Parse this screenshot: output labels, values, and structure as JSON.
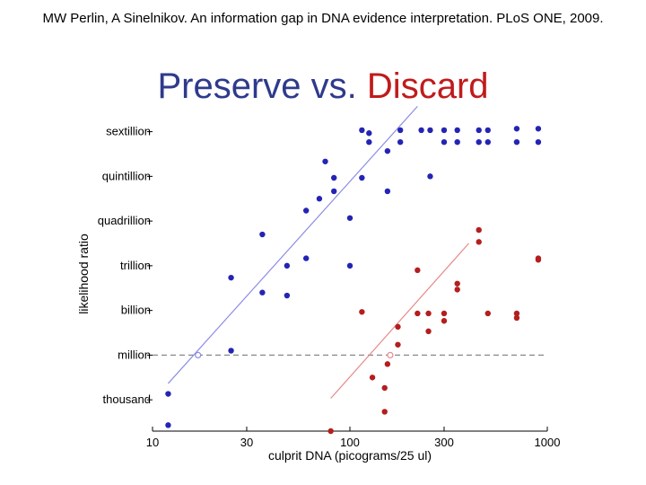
{
  "slide": {
    "citation": "MW Perlin, A Sinelnikov. An information gap in DNA evidence interpretation. PLoS ONE, 2009.",
    "title_preserve": "Preserve",
    "title_vs": "vs.",
    "title_discard": "Discard"
  },
  "colors": {
    "preserve": "#2424b4",
    "discard": "#b41e1e",
    "preserve_line": "#8c8ce6",
    "discard_line": "#e68c8c",
    "reference_line": "#888888"
  },
  "chart_data": {
    "type": "scatter",
    "xlabel": "culprit DNA (picograms/25 ul)",
    "ylabel": "likelihood ratio",
    "xscale": "log",
    "xlim": [
      10,
      1000
    ],
    "ylim": [
      0.9,
      22
    ],
    "x_ticks": [
      {
        "value": 10,
        "label": "10"
      },
      {
        "value": 30,
        "label": "30"
      },
      {
        "value": 100,
        "label": "100"
      },
      {
        "value": 300,
        "label": "300"
      },
      {
        "value": 1000,
        "label": "1000"
      }
    ],
    "y_ticks": [
      {
        "value": 3,
        "label": "thousand"
      },
      {
        "value": 6,
        "label": "million"
      },
      {
        "value": 9,
        "label": "billion"
      },
      {
        "value": 12,
        "label": "trillion"
      },
      {
        "value": 15,
        "label": "quadrillion"
      },
      {
        "value": 18,
        "label": "quintillion"
      },
      {
        "value": 21,
        "label": "sextillion"
      }
    ],
    "reference_line": {
      "y": 6,
      "style": "dashed"
    },
    "series": [
      {
        "name": "Preserve",
        "color": "#2424b4",
        "points": [
          [
            12,
            3.4
          ],
          [
            12,
            1.3
          ],
          [
            25,
            6.3
          ],
          [
            25,
            11.2
          ],
          [
            36,
            14.1
          ],
          [
            36,
            10.2
          ],
          [
            48,
            12.0
          ],
          [
            48,
            10.0
          ],
          [
            60,
            12.5
          ],
          [
            60,
            15.7
          ],
          [
            70,
            16.5
          ],
          [
            75,
            19.0
          ],
          [
            83,
            17.9
          ],
          [
            83,
            17.0
          ],
          [
            100,
            15.2
          ],
          [
            100,
            12.0
          ],
          [
            115,
            17.9
          ],
          [
            115,
            21.1
          ],
          [
            125,
            20.9
          ],
          [
            125,
            20.3
          ],
          [
            155,
            17.0
          ],
          [
            155,
            19.7
          ],
          [
            180,
            20.3
          ],
          [
            180,
            21.1
          ],
          [
            230,
            21.1
          ],
          [
            255,
            21.1
          ],
          [
            255,
            18.0
          ],
          [
            300,
            20.3
          ],
          [
            300,
            21.1
          ],
          [
            350,
            20.3
          ],
          [
            350,
            21.1
          ],
          [
            450,
            20.3
          ],
          [
            450,
            21.1
          ],
          [
            500,
            20.3
          ],
          [
            500,
            21.1
          ],
          [
            700,
            20.3
          ],
          [
            700,
            21.2
          ],
          [
            900,
            20.3
          ],
          [
            900,
            21.2
          ]
        ],
        "fit_line": [
          [
            12,
            4.1
          ],
          [
            220,
            22.7
          ]
        ],
        "threshold_marker": [
          17,
          6.0
        ]
      },
      {
        "name": "Discard",
        "color": "#b41e1e",
        "points": [
          [
            80,
            0.9
          ],
          [
            115,
            8.9
          ],
          [
            130,
            4.5
          ],
          [
            150,
            3.8
          ],
          [
            150,
            2.2
          ],
          [
            155,
            5.4
          ],
          [
            175,
            6.7
          ],
          [
            175,
            7.9
          ],
          [
            220,
            11.7
          ],
          [
            220,
            8.8
          ],
          [
            250,
            8.8
          ],
          [
            250,
            7.6
          ],
          [
            300,
            8.8
          ],
          [
            300,
            8.3
          ],
          [
            350,
            10.8
          ],
          [
            350,
            10.4
          ],
          [
            450,
            14.4
          ],
          [
            450,
            13.6
          ],
          [
            500,
            8.8
          ],
          [
            700,
            8.8
          ],
          [
            700,
            8.5
          ],
          [
            900,
            12.4
          ],
          [
            900,
            12.5
          ]
        ],
        "fit_line": [
          [
            80,
            3.1
          ],
          [
            400,
            13.5
          ]
        ],
        "threshold_marker": [
          160,
          6.0
        ]
      }
    ]
  }
}
